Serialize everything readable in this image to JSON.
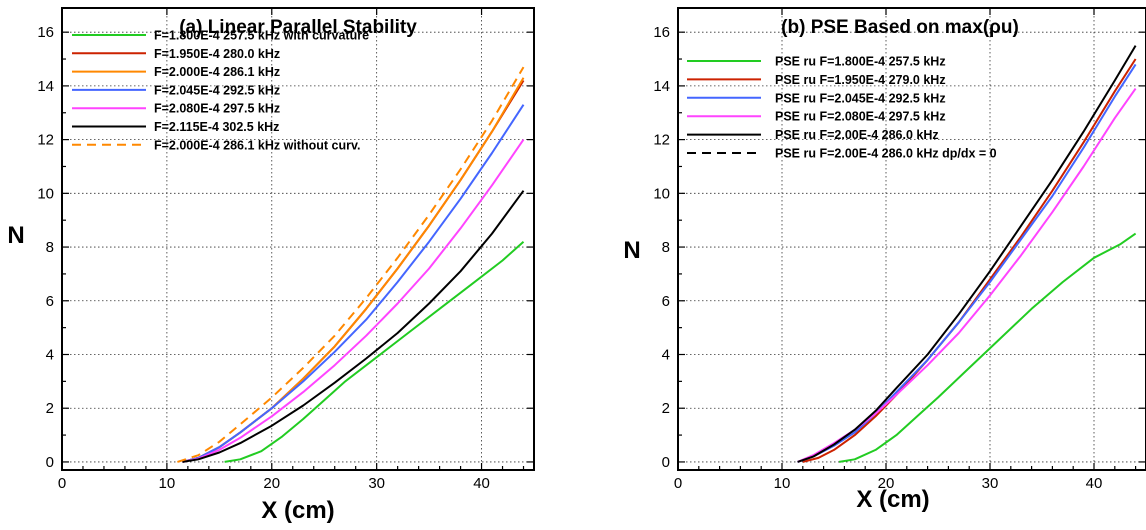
{
  "chart_data": [
    {
      "type": "line",
      "title": "(a) Linear Parallel Stability",
      "xlabel": "X (cm)",
      "ylabel": "N",
      "xlim": [
        0,
        45
      ],
      "ylim": [
        -0.3,
        16.9
      ],
      "xticks": [
        0,
        10,
        20,
        30,
        40
      ],
      "yticks": [
        0,
        2,
        4,
        6,
        8,
        10,
        12,
        14,
        16
      ],
      "grid": true,
      "legend_position": "top-left",
      "series": [
        {
          "name": "F=1.800E-4 257.5 kHz with curvature",
          "color": "#22cc22",
          "dash": false,
          "x": [
            15.5,
            17,
            19,
            21,
            23,
            25,
            27,
            30,
            33,
            36,
            39,
            42,
            44
          ],
          "y": [
            0,
            0.1,
            0.4,
            0.95,
            1.6,
            2.3,
            3.0,
            3.9,
            4.8,
            5.7,
            6.6,
            7.5,
            8.2
          ]
        },
        {
          "name": "F=1.950E-4 280.0 kHz",
          "color": "#cc2200",
          "dash": false,
          "x": [
            11.5,
            13,
            15,
            17,
            20,
            23,
            26,
            29,
            32,
            35,
            38,
            41,
            44
          ],
          "y": [
            0,
            0.15,
            0.55,
            1.1,
            2.0,
            3.1,
            4.3,
            5.7,
            7.2,
            8.8,
            10.5,
            12.3,
            14.2
          ]
        },
        {
          "name": "F=2.000E-4 286.1 kHz",
          "color": "#ff8800",
          "dash": false,
          "x": [
            11.5,
            13,
            15,
            17,
            20,
            23,
            26,
            29,
            32,
            35,
            38,
            41,
            44
          ],
          "y": [
            0,
            0.15,
            0.55,
            1.1,
            2.0,
            3.1,
            4.3,
            5.7,
            7.2,
            8.8,
            10.5,
            12.3,
            14.3
          ]
        },
        {
          "name": "F=2.045E-4 292.5 kHz",
          "color": "#4466ff",
          "dash": false,
          "x": [
            11.5,
            13,
            15,
            17,
            20,
            23,
            26,
            29,
            32,
            35,
            38,
            41,
            44
          ],
          "y": [
            0,
            0.15,
            0.55,
            1.1,
            2.0,
            3.0,
            4.1,
            5.3,
            6.7,
            8.2,
            9.8,
            11.5,
            13.3
          ]
        },
        {
          "name": "F=2.080E-4 297.5 kHz",
          "color": "#ff44ff",
          "dash": false,
          "x": [
            11.5,
            13,
            15,
            17,
            20,
            23,
            26,
            29,
            32,
            35,
            38,
            41,
            44
          ],
          "y": [
            0,
            0.12,
            0.45,
            0.9,
            1.7,
            2.6,
            3.6,
            4.7,
            5.9,
            7.2,
            8.7,
            10.3,
            12.0
          ]
        },
        {
          "name": "F=2.115E-4 302.5 kHz",
          "color": "#000000",
          "dash": false,
          "x": [
            11.5,
            13,
            15,
            17,
            20,
            23,
            26,
            29,
            32,
            35,
            38,
            41,
            44
          ],
          "y": [
            0,
            0.1,
            0.35,
            0.7,
            1.35,
            2.1,
            2.95,
            3.85,
            4.8,
            5.9,
            7.1,
            8.5,
            10.1
          ]
        },
        {
          "name": "F=2.000E-4 286.1 kHz without curv.",
          "color": "#ff8800",
          "dash": true,
          "x": [
            11,
            13,
            15,
            17,
            20,
            23,
            26,
            29,
            32,
            35,
            38,
            41,
            44
          ],
          "y": [
            0,
            0.25,
            0.75,
            1.4,
            2.4,
            3.5,
            4.7,
            6.1,
            7.6,
            9.2,
            10.9,
            12.7,
            14.7
          ]
        }
      ]
    },
    {
      "type": "line",
      "title": "(b) PSE Based on max(ρu)",
      "xlabel": "X (cm)",
      "ylabel": "N",
      "xlim": [
        0,
        45
      ],
      "ylim": [
        -0.3,
        16.9
      ],
      "xticks": [
        0,
        10,
        20,
        30,
        40
      ],
      "yticks": [
        0,
        2,
        4,
        6,
        8,
        10,
        12,
        14,
        16
      ],
      "grid": true,
      "legend_position": "top-left",
      "series": [
        {
          "name": "PSE ru F=1.800E-4 257.5 kHz",
          "color": "#22cc22",
          "dash": false,
          "x": [
            15.5,
            17,
            19,
            21,
            23,
            25,
            28,
            31,
            34,
            37,
            40,
            42.5,
            44
          ],
          "y": [
            0,
            0.1,
            0.45,
            1.0,
            1.7,
            2.4,
            3.5,
            4.6,
            5.7,
            6.7,
            7.6,
            8.1,
            8.5
          ]
        },
        {
          "name": "PSE ru F=1.950E-4 279.0 kHz",
          "color": "#cc2200",
          "dash": false,
          "x": [
            12,
            13.5,
            15,
            17,
            19,
            21,
            24,
            27,
            30,
            33,
            36,
            39,
            42,
            44
          ],
          "y": [
            0,
            0.15,
            0.45,
            1.0,
            1.7,
            2.5,
            3.8,
            5.2,
            6.8,
            8.4,
            10.1,
            11.9,
            13.8,
            15.0
          ]
        },
        {
          "name": "PSE ru F=2.045E-4 292.5 kHz",
          "color": "#4466ff",
          "dash": false,
          "x": [
            11.5,
            13,
            15,
            17,
            19,
            21,
            24,
            27,
            30,
            33,
            36,
            39,
            42,
            44
          ],
          "y": [
            0,
            0.2,
            0.6,
            1.1,
            1.8,
            2.6,
            3.8,
            5.2,
            6.7,
            8.3,
            9.9,
            11.7,
            13.6,
            14.8
          ]
        },
        {
          "name": "PSE ru F=2.080E-4 297.5 kHz",
          "color": "#ff44ff",
          "dash": false,
          "x": [
            11.5,
            13,
            15,
            17,
            19,
            21,
            24,
            27,
            30,
            33,
            36,
            39,
            42,
            44
          ],
          "y": [
            0,
            0.25,
            0.7,
            1.2,
            1.8,
            2.5,
            3.6,
            4.8,
            6.2,
            7.7,
            9.3,
            11.0,
            12.8,
            13.9
          ]
        },
        {
          "name": "PSE ru F=2.00E-4 286.0 kHz",
          "color": "#000000",
          "dash": false,
          "x": [
            11.5,
            13,
            15,
            17,
            19,
            21,
            24,
            27,
            30,
            33,
            36,
            39,
            42,
            44
          ],
          "y": [
            0,
            0.2,
            0.65,
            1.2,
            1.9,
            2.75,
            4.0,
            5.5,
            7.1,
            8.8,
            10.5,
            12.3,
            14.2,
            15.5
          ]
        },
        {
          "name": "PSE ru F=2.00E-4 286.0 kHz dp/dx = 0",
          "color": "#000000",
          "dash": true,
          "x": [],
          "y": []
        }
      ]
    }
  ]
}
